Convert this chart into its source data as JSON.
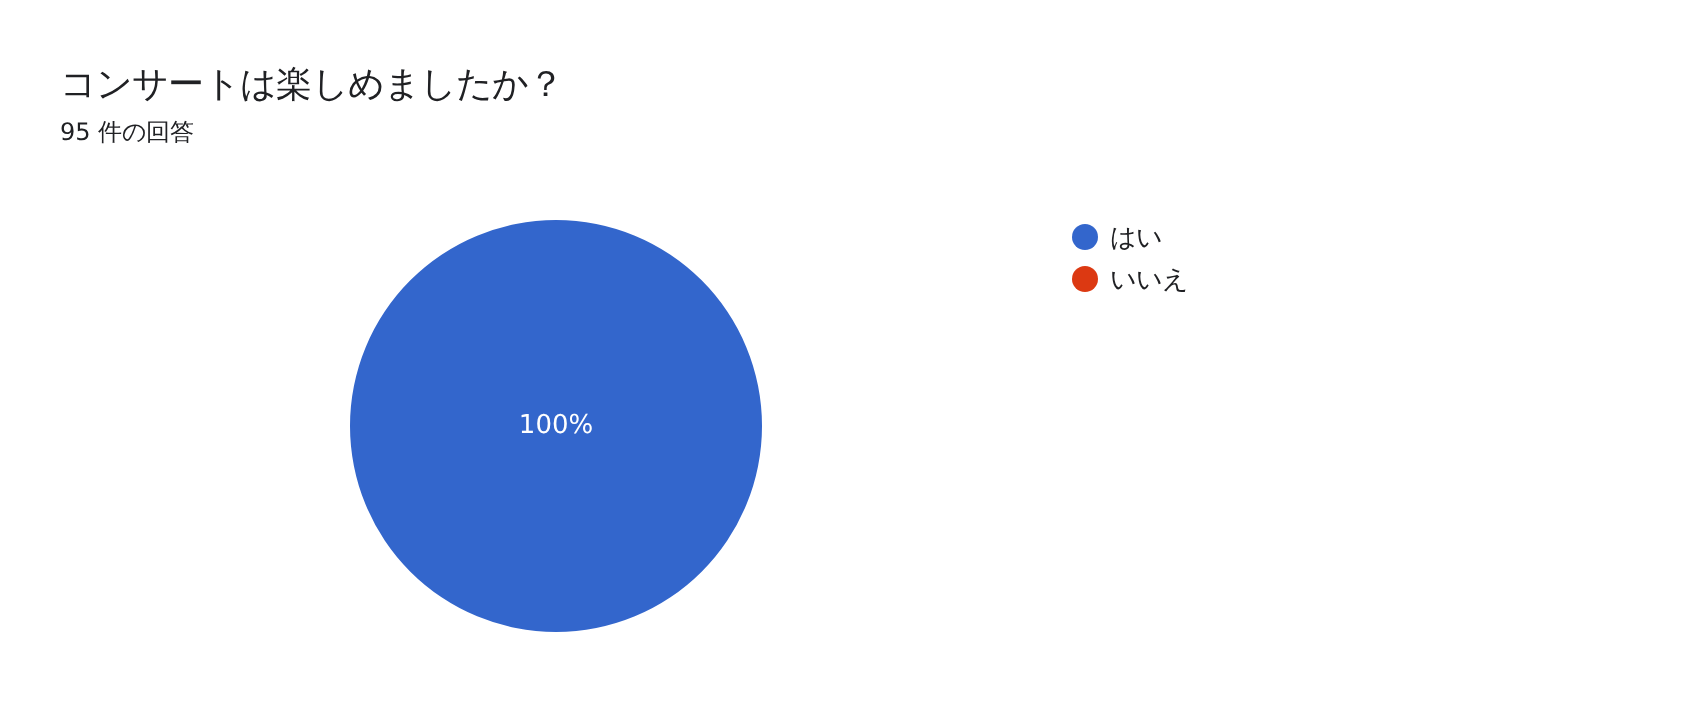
{
  "chart_data": {
    "type": "pie",
    "title": "コンサートは楽しめましたか？",
    "subtitle": "95 件の回答",
    "categories": [
      "はい",
      "いいえ"
    ],
    "values": [
      100,
      0
    ],
    "colors": [
      "#3366cc",
      "#dc3912"
    ],
    "value_labels": [
      "100%",
      null
    ],
    "legend": "top right"
  }
}
